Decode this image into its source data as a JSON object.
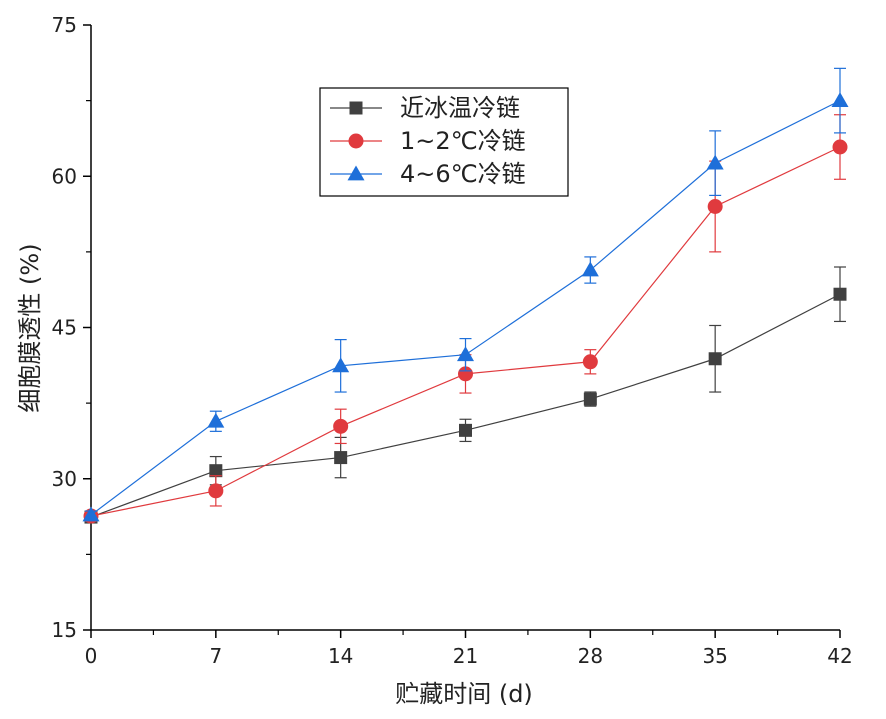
{
  "chart_data": {
    "type": "line",
    "title": "",
    "xlabel": "贮藏时间 (d)",
    "ylabel": "细胞膜透性 (%)",
    "x": [
      0,
      7,
      14,
      21,
      28,
      35,
      42
    ],
    "xlim": [
      0,
      42
    ],
    "ylim": [
      15,
      75
    ],
    "xticks": [
      "0",
      "7",
      "14",
      "21",
      "28",
      "35",
      "42"
    ],
    "yticks": [
      "15",
      "30",
      "45",
      "60",
      "75"
    ],
    "grid": false,
    "legend_position": "top-center",
    "series": [
      {
        "name": "近冰温冷链",
        "color": "#404040",
        "marker": "square",
        "values": [
          26.2,
          30.8,
          32.1,
          34.8,
          37.9,
          41.9,
          48.3
        ],
        "errors": [
          0.5,
          1.4,
          2.0,
          1.1,
          0.7,
          3.3,
          2.7
        ]
      },
      {
        "name": "1~2℃冷链",
        "color": "#e03a3e",
        "marker": "circle",
        "values": [
          26.3,
          28.8,
          35.2,
          40.4,
          41.6,
          57.0,
          62.9
        ],
        "errors": [
          0.5,
          1.5,
          1.7,
          1.9,
          1.2,
          4.5,
          3.2
        ]
      },
      {
        "name": "4~6℃冷链",
        "color": "#1e6fd9",
        "marker": "triangle",
        "values": [
          26.4,
          35.7,
          41.2,
          42.3,
          50.7,
          61.3,
          67.5
        ],
        "errors": [
          0.4,
          1.0,
          2.6,
          1.6,
          1.3,
          3.2,
          3.2
        ]
      }
    ]
  }
}
